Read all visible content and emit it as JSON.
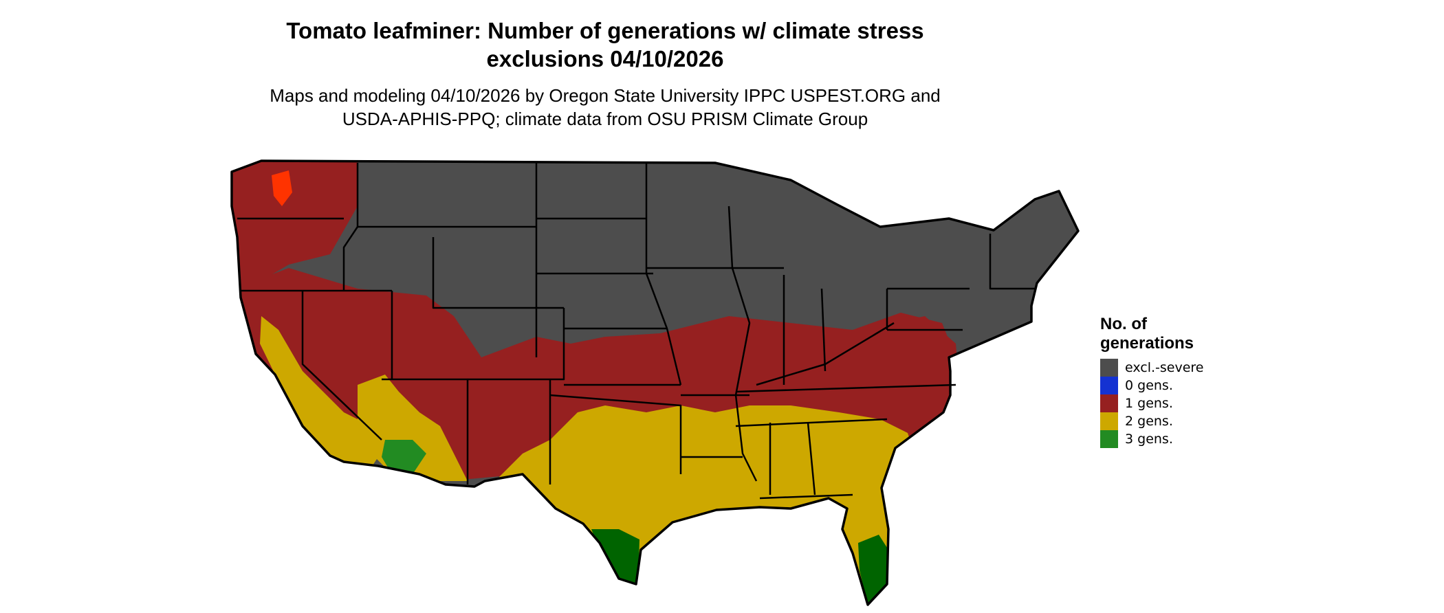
{
  "map": {
    "title_line1": "Tomato leafminer: Number of generations w/ climate stress",
    "title_line2": "exclusions 04/10/2026",
    "subtitle_line1": "Maps and modeling 04/10/2026 by Oregon State University IPPC USPEST.ORG and",
    "subtitle_line2": "USDA-APHIS-PPQ; climate data from OSU PRISM Climate Group",
    "region": "Conterminous United States",
    "colors": {
      "excluded": "#4d4d4d",
      "gen0": "#1432d2",
      "gen1": "#962020",
      "gen2": "#cda800",
      "gen3": "#228b22",
      "gen3_dark": "#006400",
      "state_border": "#000000",
      "hotspot": "#ff3300"
    }
  },
  "legend": {
    "title_line1": "No. of",
    "title_line2": "generations",
    "items": [
      {
        "label": "excl.-severe",
        "color": "#4d4d4d"
      },
      {
        "label": "0 gens.",
        "color": "#1432d2"
      },
      {
        "label": "1 gens.",
        "color": "#962020"
      },
      {
        "label": "2 gens.",
        "color": "#cda800"
      },
      {
        "label": "3 gens.",
        "color": "#228b22"
      }
    ]
  }
}
